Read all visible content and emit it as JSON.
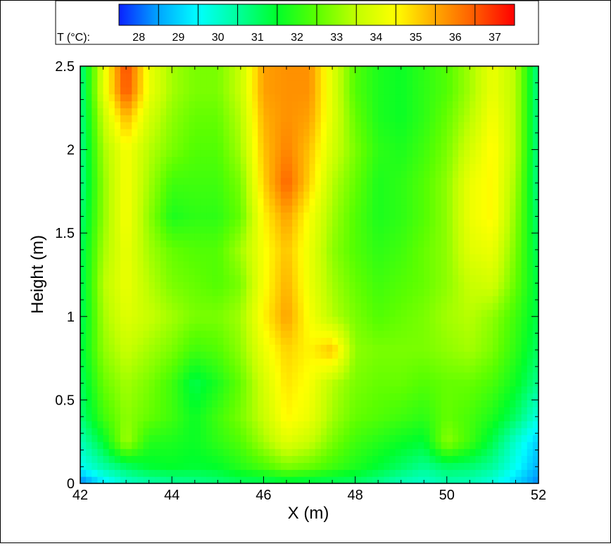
{
  "chart_data": {
    "type": "heatmap",
    "title": "",
    "xlabel": "X (m)",
    "ylabel": "Height (m)",
    "xlim": [
      42,
      52
    ],
    "ylim": [
      0,
      2.5
    ],
    "x_ticks": [
      42,
      44,
      46,
      48,
      50,
      52
    ],
    "y_ticks": [
      0,
      0.5,
      1,
      1.5,
      2,
      2.5
    ],
    "x_tick_labels": [
      "42",
      "44",
      "46",
      "48",
      "50",
      "52"
    ],
    "y_tick_labels": [
      "0",
      "0.5",
      "1",
      "1.5",
      "2",
      "2.5"
    ],
    "x_minor_step": 0.5,
    "y_minor_step": 0.1,
    "legend": {
      "label": "T (°C):",
      "placement": "top",
      "range": [
        27.5,
        37.5
      ],
      "levels": [
        28,
        29,
        30,
        31,
        32,
        33,
        34,
        35,
        36,
        37
      ],
      "level_labels": [
        "28",
        "29",
        "30",
        "31",
        "32",
        "33",
        "34",
        "35",
        "36",
        "37"
      ]
    },
    "colormap": [
      "#0a22ff",
      "#00a6ff",
      "#00ffff",
      "#00ff9c",
      "#00ff2a",
      "#5aff00",
      "#c2ff00",
      "#ffff00",
      "#ffa800",
      "#ff5a00",
      "#ff0000"
    ],
    "grid": false,
    "x": [
      42,
      42.5,
      43,
      43.5,
      44,
      44.5,
      45,
      45.5,
      46,
      46.5,
      47,
      47.5,
      48,
      48.5,
      49,
      49.5,
      50,
      50.5,
      51,
      51.5,
      52
    ],
    "y": [
      0,
      0.1,
      0.25,
      0.4,
      0.6,
      0.8,
      1.0,
      1.2,
      1.4,
      1.6,
      1.8,
      2.0,
      2.2,
      2.35,
      2.5
    ],
    "z": [
      [
        28.0,
        29.2,
        30.0,
        30.3,
        30.5,
        30.6,
        30.8,
        31.0,
        31.0,
        31.2,
        31.1,
        31.0,
        30.9,
        30.6,
        30.2,
        30.0,
        30.3,
        30.2,
        29.8,
        29.0,
        28.2
      ],
      [
        29.6,
        30.4,
        31.0,
        31.4,
        31.5,
        31.4,
        31.5,
        31.9,
        32.3,
        32.8,
        32.6,
        32.2,
        31.8,
        31.4,
        31.0,
        30.6,
        31.0,
        30.9,
        30.5,
        29.6,
        28.6
      ],
      [
        30.2,
        31.4,
        33.2,
        31.9,
        31.8,
        31.6,
        32.0,
        32.4,
        33.2,
        34.0,
        33.6,
        32.8,
        32.2,
        31.9,
        31.6,
        31.4,
        33.0,
        32.2,
        31.2,
        30.0,
        28.9
      ],
      [
        30.8,
        32.2,
        33.0,
        32.6,
        32.2,
        31.6,
        32.2,
        32.8,
        33.6,
        34.6,
        34.2,
        33.2,
        32.6,
        32.4,
        32.2,
        32.0,
        32.6,
        32.3,
        31.8,
        31.0,
        29.8
      ],
      [
        31.0,
        32.6,
        33.2,
        32.8,
        32.2,
        31.2,
        31.8,
        32.6,
        33.8,
        34.8,
        34.4,
        33.4,
        32.8,
        32.6,
        32.6,
        32.4,
        32.6,
        32.6,
        32.3,
        31.6,
        30.6
      ],
      [
        31.2,
        33.0,
        33.6,
        33.2,
        32.8,
        32.2,
        32.4,
        33.0,
        34.2,
        35.0,
        34.6,
        35.2,
        33.0,
        32.8,
        32.8,
        32.8,
        33.0,
        33.2,
        32.8,
        32.0,
        31.0
      ],
      [
        31.0,
        33.2,
        34.0,
        33.6,
        33.2,
        32.8,
        32.8,
        33.2,
        34.6,
        35.6,
        34.4,
        33.4,
        32.8,
        32.4,
        32.6,
        32.8,
        33.2,
        33.4,
        33.0,
        32.2,
        31.2
      ],
      [
        31.0,
        33.4,
        34.2,
        33.4,
        32.8,
        32.6,
        32.4,
        32.8,
        34.4,
        35.4,
        34.2,
        33.2,
        32.6,
        32.2,
        32.4,
        32.6,
        33.0,
        33.6,
        33.8,
        32.6,
        31.2
      ],
      [
        31.0,
        33.2,
        34.2,
        33.2,
        32.6,
        32.4,
        32.4,
        33.2,
        34.4,
        35.2,
        34.2,
        33.0,
        32.4,
        32.0,
        32.2,
        32.6,
        33.0,
        34.0,
        34.2,
        32.8,
        31.0
      ],
      [
        30.8,
        33.0,
        34.4,
        33.0,
        31.8,
        32.0,
        32.0,
        32.6,
        34.6,
        35.6,
        34.4,
        33.2,
        32.4,
        31.8,
        32.0,
        32.4,
        33.0,
        34.2,
        34.6,
        33.0,
        30.8
      ],
      [
        30.6,
        33.0,
        34.4,
        33.2,
        32.2,
        32.2,
        32.2,
        32.8,
        35.0,
        36.4,
        35.0,
        33.4,
        32.6,
        31.8,
        32.0,
        32.4,
        33.0,
        34.2,
        34.6,
        33.2,
        30.6
      ],
      [
        30.6,
        33.2,
        34.4,
        33.4,
        32.8,
        32.4,
        32.4,
        33.2,
        35.2,
        36.0,
        35.2,
        33.8,
        32.8,
        32.0,
        31.8,
        32.2,
        32.8,
        33.8,
        34.6,
        33.4,
        30.6
      ],
      [
        30.6,
        33.6,
        35.4,
        33.8,
        33.0,
        32.6,
        32.6,
        33.4,
        35.4,
        35.8,
        35.6,
        34.0,
        32.6,
        31.8,
        31.6,
        32.0,
        32.6,
        33.4,
        34.4,
        33.4,
        30.6
      ],
      [
        30.6,
        34.0,
        36.6,
        34.2,
        33.2,
        32.8,
        32.8,
        33.6,
        35.6,
        35.8,
        35.8,
        34.0,
        32.4,
        31.8,
        31.6,
        32.0,
        32.4,
        33.2,
        34.2,
        33.4,
        30.6
      ],
      [
        30.6,
        34.0,
        36.8,
        34.2,
        33.2,
        32.8,
        32.8,
        33.6,
        35.6,
        35.8,
        35.8,
        34.0,
        32.4,
        31.8,
        31.6,
        32.0,
        32.4,
        33.2,
        34.2,
        33.4,
        30.6
      ]
    ]
  }
}
